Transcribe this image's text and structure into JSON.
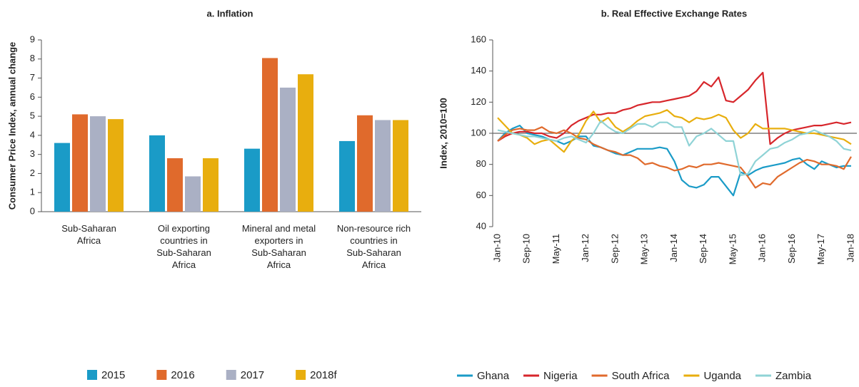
{
  "chart_data": [
    {
      "type": "bar",
      "title": "a. Inflation",
      "y_label": "Consumer Price Index, annual change",
      "categories": [
        "Sub-Saharan Africa",
        "Oil exporting countries in Sub-Saharan Africa",
        "Mineral and metal exporters in Sub-Saharan Africa",
        "Non-resource rich countries in Sub-Saharan Africa"
      ],
      "series": [
        {
          "name": "2015",
          "color": "#1a9bc7",
          "values": [
            3.6,
            4.0,
            3.3,
            3.7
          ]
        },
        {
          "name": "2016",
          "color": "#e06a2c",
          "values": [
            5.1,
            2.8,
            8.05,
            5.05
          ]
        },
        {
          "name": "2017",
          "color": "#aab0c4",
          "values": [
            5.0,
            1.85,
            6.5,
            4.8
          ]
        },
        {
          "name": "2018f",
          "color": "#e8ae0e",
          "values": [
            4.85,
            2.8,
            7.2,
            4.8
          ]
        }
      ],
      "ylim": [
        0,
        9
      ],
      "yticks": [
        0,
        1,
        2,
        3,
        4,
        5,
        6,
        7,
        8,
        9
      ]
    },
    {
      "type": "line",
      "title": "b. Real Effective Exchange Rates",
      "y_label": "Index, 2010=100",
      "categories": [
        "Jan-10",
        null,
        null,
        null,
        "Sep-10",
        null,
        null,
        null,
        "May-11",
        null,
        null,
        null,
        "Jan-12",
        null,
        null,
        null,
        "Sep-12",
        null,
        null,
        null,
        "May-13",
        null,
        null,
        null,
        "Jan-14",
        null,
        null,
        null,
        "Sep-14",
        null,
        null,
        null,
        "May-15",
        null,
        null,
        null,
        "Jan-16",
        null,
        null,
        null,
        "Sep-16",
        null,
        null,
        null,
        "May-17",
        null,
        null,
        null,
        "Jan-18"
      ],
      "series": [
        {
          "name": "Ghana",
          "color": "#1a9bc7",
          "values": [
            95,
            100,
            103,
            105,
            100,
            99,
            98,
            96,
            95,
            93,
            95,
            98,
            98,
            92,
            91,
            89,
            87,
            86,
            88,
            90,
            90,
            90,
            91,
            90,
            82,
            70,
            66,
            65,
            67,
            72,
            72,
            66,
            60,
            75,
            73,
            76,
            78,
            79,
            80,
            81,
            83,
            84,
            80,
            77,
            82,
            80,
            78,
            79,
            79
          ]
        },
        {
          "name": "Nigeria",
          "color": "#d7262b",
          "values": [
            95,
            98,
            100,
            101,
            101,
            100,
            100,
            98,
            97,
            100,
            105,
            108,
            110,
            112,
            112,
            113,
            113,
            115,
            116,
            118,
            119,
            120,
            120,
            121,
            122,
            123,
            124,
            127,
            133,
            130,
            136,
            121,
            120,
            124,
            128,
            134,
            139,
            93,
            97,
            100,
            102,
            103,
            104,
            105,
            105,
            106,
            107,
            106,
            107
          ]
        },
        {
          "name": "South Africa",
          "color": "#e06a2c",
          "values": [
            95,
            99,
            102,
            103,
            102,
            102,
            104,
            101,
            100,
            102,
            100,
            97,
            96,
            93,
            91,
            89,
            88,
            86,
            86,
            84,
            80,
            81,
            79,
            78,
            76,
            77,
            79,
            78,
            80,
            80,
            81,
            80,
            79,
            78,
            72,
            65,
            68,
            67,
            72,
            75,
            78,
            81,
            83,
            82,
            80,
            80,
            79,
            77,
            85
          ]
        },
        {
          "name": "Uganda",
          "color": "#e8ae0e",
          "values": [
            110,
            105,
            100,
            99,
            97,
            93,
            95,
            96,
            92,
            88,
            95,
            99,
            108,
            114,
            107,
            110,
            104,
            101,
            104,
            108,
            111,
            112,
            113,
            115,
            111,
            110,
            107,
            110,
            109,
            110,
            112,
            110,
            102,
            97,
            100,
            106,
            103,
            103,
            103,
            103,
            102,
            101,
            100,
            100,
            99,
            98,
            97,
            96,
            93
          ]
        },
        {
          "name": "Zambia",
          "color": "#8fd3d6",
          "values": [
            102,
            101,
            100,
            99,
            98,
            98,
            97,
            96,
            95,
            97,
            98,
            96,
            94,
            100,
            108,
            104,
            101,
            100,
            103,
            106,
            106,
            104,
            107,
            107,
            104,
            104,
            92,
            98,
            100,
            103,
            99,
            95,
            95,
            73,
            74,
            82,
            86,
            90,
            91,
            94,
            96,
            99,
            100,
            102,
            100,
            98,
            95,
            90,
            89
          ]
        }
      ],
      "reference_line": 100,
      "ylim": [
        40,
        160
      ],
      "yticks": [
        40,
        60,
        80,
        100,
        120,
        140,
        160
      ]
    }
  ]
}
